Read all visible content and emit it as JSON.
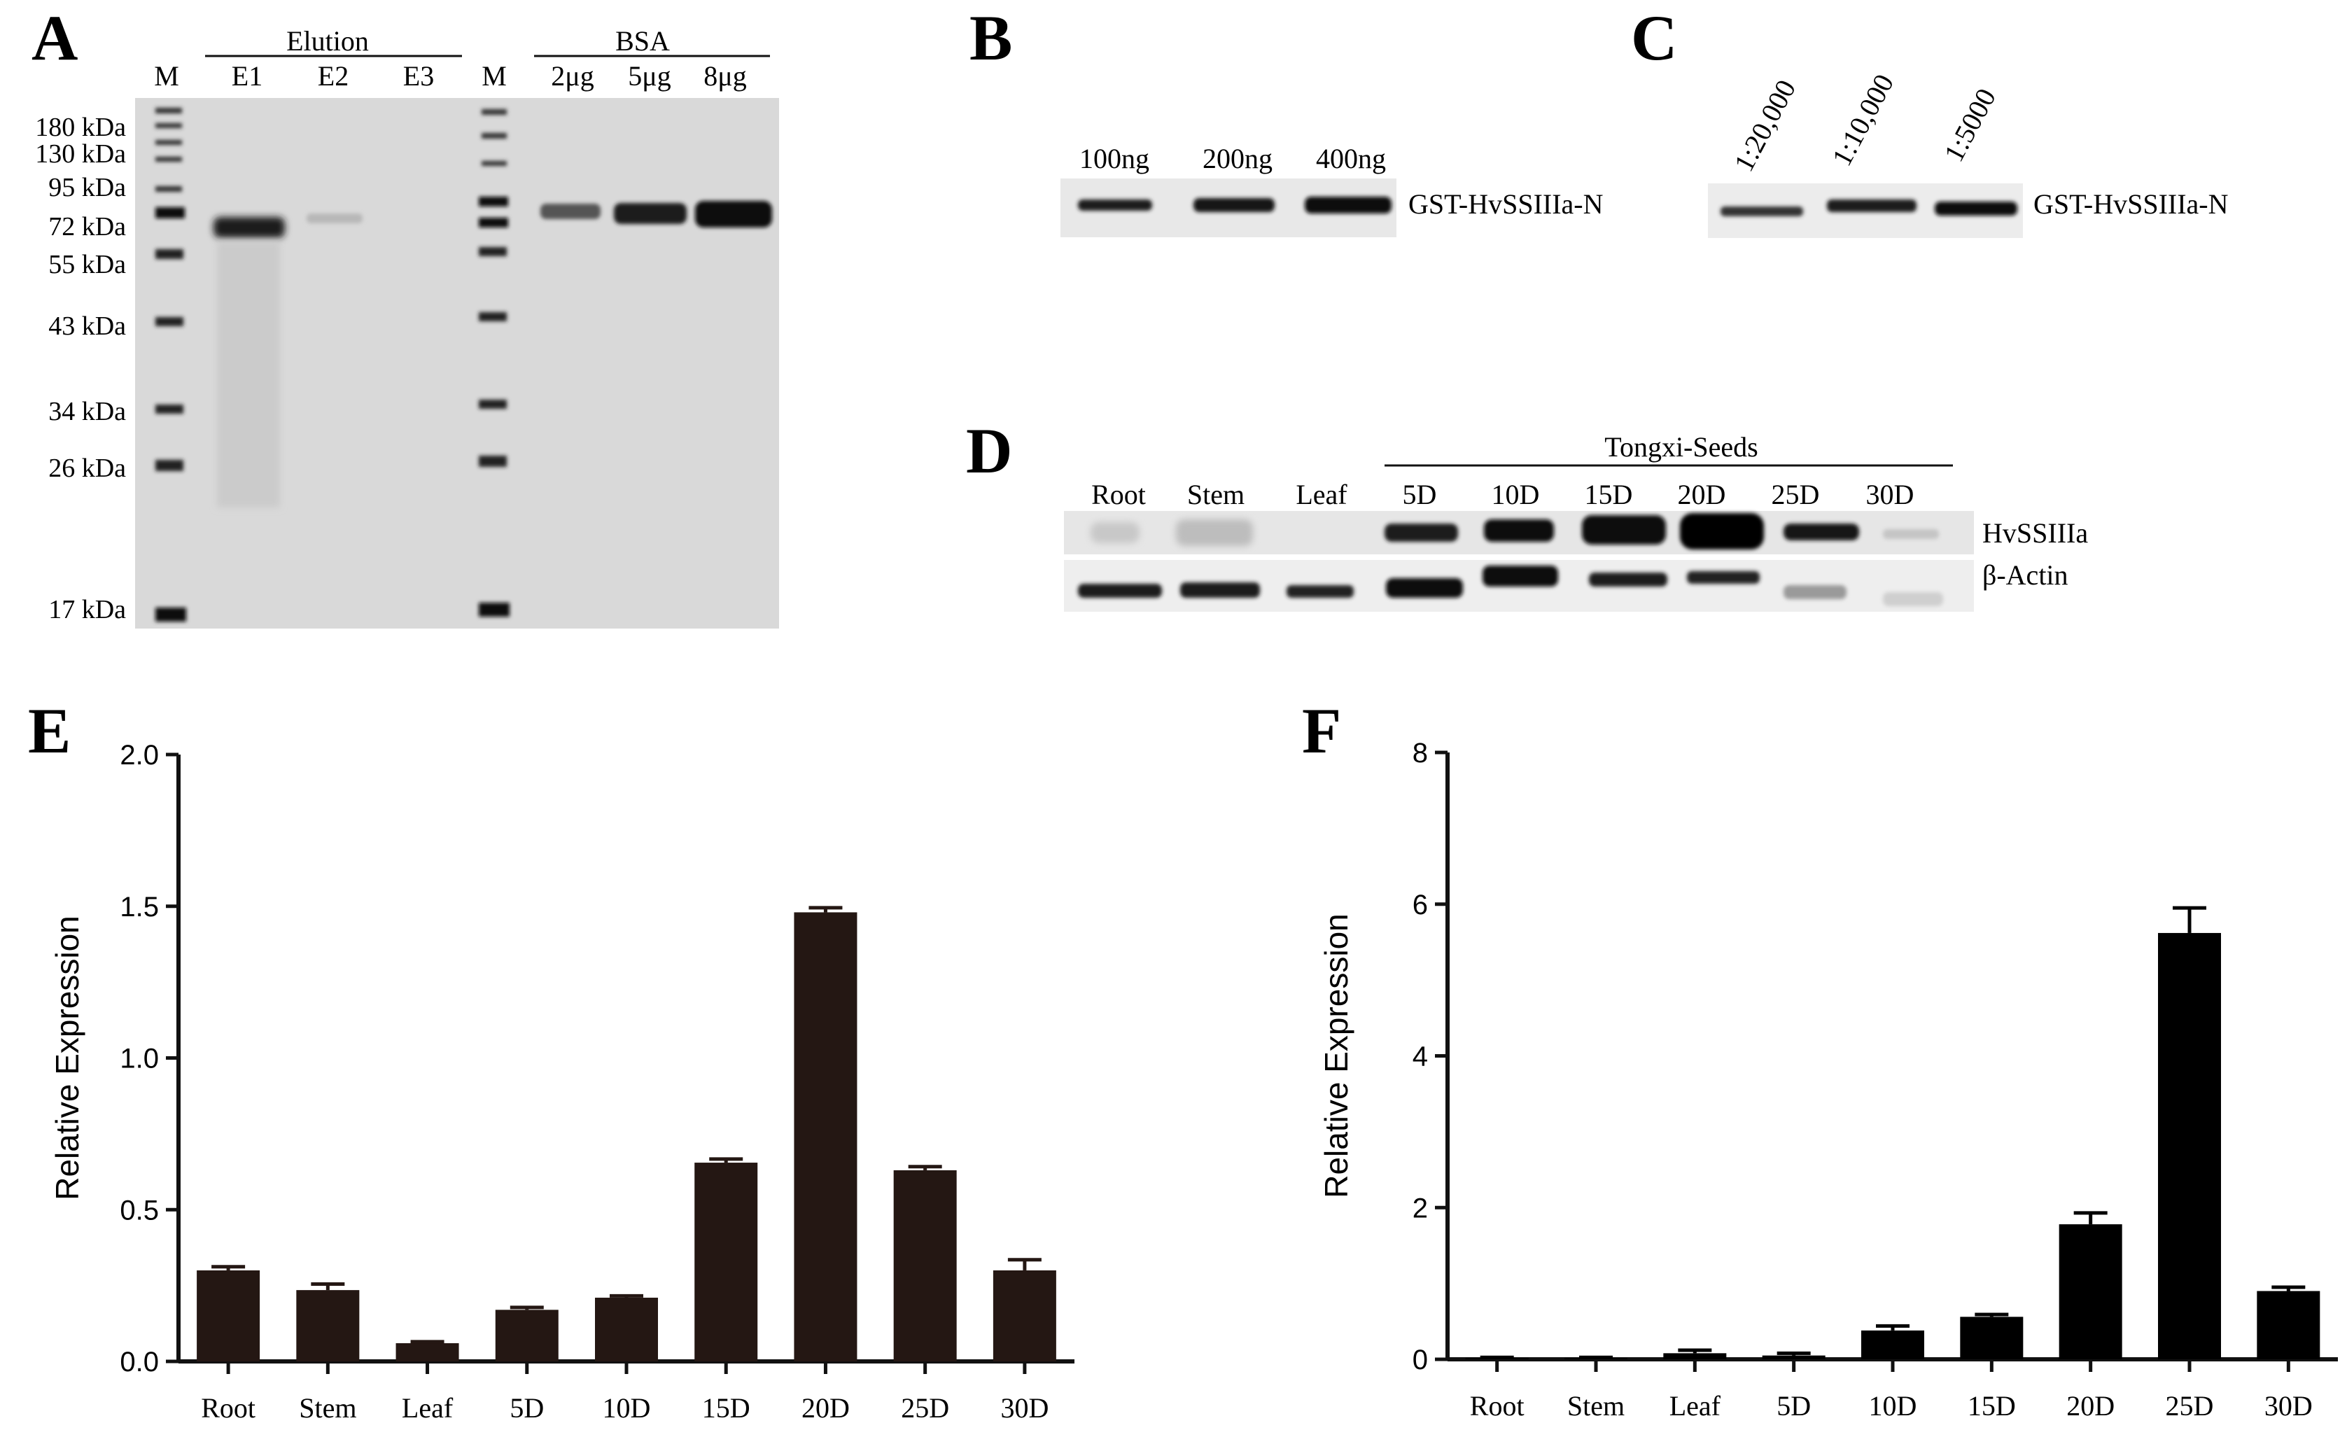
{
  "panels": {
    "A": {
      "letter": "A",
      "marker_lane": "M",
      "marker_lane_2": "M",
      "groups": [
        {
          "label": "Elution",
          "lanes": [
            "E1",
            "E2",
            "E3"
          ]
        },
        {
          "label": "BSA",
          "lanes": [
            "2μg",
            "5μg",
            "8μg"
          ]
        }
      ],
      "mw_markers": [
        "180 kDa",
        "130 kDa",
        "95 kDa",
        "72 kDa",
        "55 kDa",
        "43 kDa",
        "34 kDa",
        "26 kDa",
        "17 kDa"
      ]
    },
    "B": {
      "letter": "B",
      "lanes": [
        "100ng",
        "200ng",
        "400ng"
      ],
      "protein": "GST-HvSSIIIa-N"
    },
    "C": {
      "letter": "C",
      "lanes": [
        "1:20,000",
        "1:10,000",
        "1:5000"
      ],
      "protein": "GST-HvSSIIIa-N"
    },
    "D": {
      "letter": "D",
      "group_label": "Tongxi-Seeds",
      "lanes": [
        "Root",
        "Stem",
        "Leaf",
        "5D",
        "10D",
        "15D",
        "20D",
        "25D",
        "30D"
      ],
      "rows": [
        "HvSSIIIa",
        "β-Actin"
      ]
    }
  },
  "chart_data": [
    {
      "type": "bar",
      "panel": "E",
      "title": "",
      "xlabel": "",
      "ylabel": "Relative Expression",
      "categories": [
        "Root",
        "Stem",
        "Leaf",
        "5D",
        "10D",
        "15D",
        "20D",
        "25D",
        "30D"
      ],
      "values": [
        0.3,
        0.235,
        0.06,
        0.17,
        0.21,
        0.655,
        1.48,
        0.63,
        0.3
      ],
      "errors": [
        0.012,
        0.02,
        0.005,
        0.008,
        0.006,
        0.012,
        0.015,
        0.012,
        0.035
      ],
      "ylim": [
        0,
        2.0
      ],
      "yticks": [
        "0.0",
        "0.5",
        "1.0",
        "1.5",
        "2.0"
      ],
      "bar_color": "#241713",
      "grid": false
    },
    {
      "type": "bar",
      "panel": "F",
      "title": "",
      "xlabel": "",
      "ylabel": "Relative Expression",
      "categories": [
        "Root",
        "Stem",
        "Leaf",
        "5D",
        "10D",
        "15D",
        "20D",
        "25D",
        "30D"
      ],
      "values": [
        0.02,
        0.02,
        0.08,
        0.05,
        0.38,
        0.56,
        1.78,
        5.62,
        0.9
      ],
      "errors": [
        0.005,
        0.005,
        0.04,
        0.03,
        0.06,
        0.03,
        0.15,
        0.33,
        0.05
      ],
      "ylim": [
        0,
        8
      ],
      "yticks": [
        "0",
        "2",
        "4",
        "6",
        "8"
      ],
      "bar_color": "#000000",
      "grid": false
    }
  ]
}
